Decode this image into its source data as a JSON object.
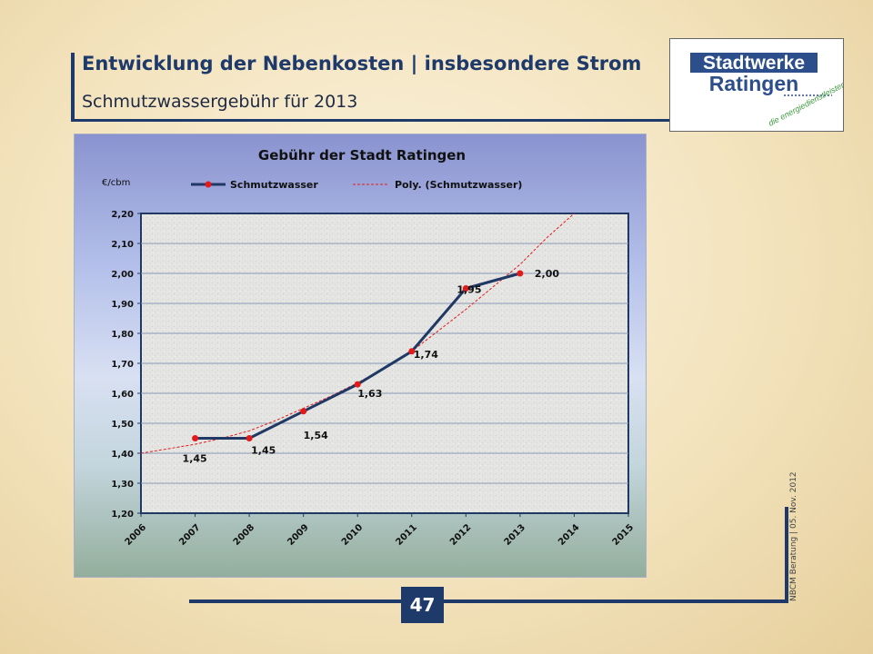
{
  "header": {
    "title": "Entwicklung der Nebenkosten | insbesondere Strom",
    "subtitle": "Schmutzwassergebühr für 2013"
  },
  "logo": {
    "line1": "Stadtwerke",
    "line2": "Ratingen",
    "tagline": "die energiedienstleister"
  },
  "footer": {
    "page_number": "47",
    "vertical_text": "NBCM Beratung | 05. Nov. 2012"
  },
  "colors": {
    "primary": "#1e3a6b",
    "series_line": "#1f3864",
    "marker": "#e41a1a",
    "trend": "#e41a1a"
  },
  "chart_data": {
    "type": "line",
    "title": "Gebühr der Stadt Ratingen",
    "ylabel": "€/cbm",
    "xlabel": "",
    "categories": [
      "2006",
      "2007",
      "2008",
      "2009",
      "2010",
      "2011",
      "2012",
      "2013",
      "2014",
      "2015"
    ],
    "ylim": [
      1.2,
      2.2
    ],
    "yticks": [
      "1,20",
      "1,30",
      "1,40",
      "1,50",
      "1,60",
      "1,70",
      "1,80",
      "1,90",
      "2,00",
      "2,10",
      "2,20"
    ],
    "grid": true,
    "legend_position": "top",
    "series": [
      {
        "name": "Schmutzwasser",
        "x": [
          2007,
          2008,
          2009,
          2010,
          2011,
          2012,
          2013
        ],
        "values": [
          1.45,
          1.45,
          1.54,
          1.63,
          1.74,
          1.95,
          2.0
        ],
        "data_labels": [
          "1,45",
          "1,45",
          "1,54",
          "1,63",
          "1,74",
          "1,95",
          "2,00"
        ]
      }
    ],
    "trendline": {
      "name": "Poly. (Schmutzwasser)",
      "type": "polynomial",
      "x": [
        2006.0,
        2006.5,
        2007.0,
        2007.5,
        2008.0,
        2008.5,
        2009.0,
        2009.5,
        2010.0,
        2010.5,
        2011.0,
        2011.5,
        2012.0,
        2012.5,
        2013.0,
        2013.5,
        2014.0
      ],
      "values": [
        1.4,
        1.415,
        1.43,
        1.45,
        1.475,
        1.51,
        1.55,
        1.59,
        1.635,
        1.685,
        1.74,
        1.81,
        1.88,
        1.955,
        2.03,
        2.12,
        2.2
      ]
    }
  }
}
